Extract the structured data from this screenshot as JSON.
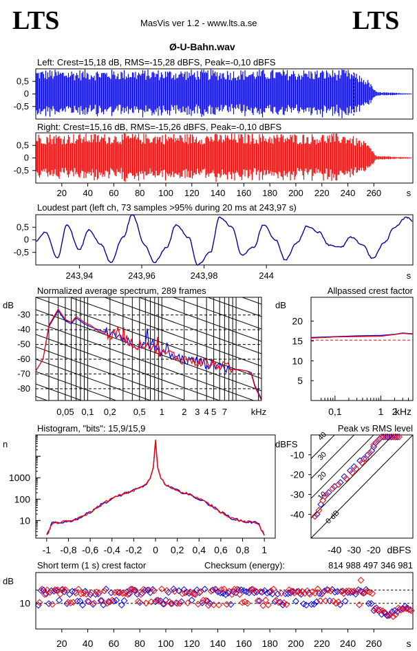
{
  "header": {
    "logo_left": "LTS",
    "logo_right": "LTS",
    "app": "MasVis ver 1.2 - www.lts.a.se",
    "file": "Ø-U-Bahn.wav"
  },
  "chart_data": [
    {
      "id": "left",
      "type": "waveform",
      "title": "Left: Crest=15,18 dB, RMS=-15,28 dBFS, Peak=-0,10 dBFS",
      "color": "#0000ff",
      "ylim": [
        -1,
        1
      ],
      "yticks": [
        "0,5",
        "0",
        "-0,5"
      ],
      "xlim": [
        0,
        290
      ],
      "envelope": [
        [
          0,
          0.98
        ],
        [
          240,
          0.98
        ],
        [
          255,
          0.6
        ],
        [
          262,
          0.08
        ],
        [
          290,
          0.02
        ]
      ]
    },
    {
      "id": "right",
      "type": "waveform",
      "title": "Right: Crest=15,16 dB, RMS=-15,26 dBFS, Peak=-0,10 dBFS",
      "color": "#ff0000",
      "ylim": [
        -1,
        1
      ],
      "yticks": [
        "0,5",
        "0",
        "-0,5"
      ],
      "xlim": [
        0,
        290
      ],
      "xticks": [
        "20",
        "40",
        "60",
        "80",
        "100",
        "120",
        "140",
        "160",
        "180",
        "200",
        "220",
        "240",
        "260"
      ],
      "xunit": "s",
      "envelope": [
        [
          0,
          0.98
        ],
        [
          240,
          0.98
        ],
        [
          255,
          0.6
        ],
        [
          262,
          0.08
        ],
        [
          290,
          0.02
        ]
      ]
    },
    {
      "id": "loudest",
      "type": "line",
      "title": "Loudest part (left  ch, 73 samples >95% during 20 ms at 243,97 s)",
      "color": "#0000a0",
      "xlim": [
        243.926,
        244.047
      ],
      "ylim": [
        -1,
        1
      ],
      "yticks": [
        "0,5",
        "0",
        "-0,5"
      ],
      "xticks": [
        "243,94",
        "243,96",
        "243,98",
        "244"
      ],
      "xunit": "s",
      "x": [
        243.926,
        243.929,
        243.933,
        243.936,
        243.94,
        243.943,
        243.947,
        243.95,
        243.954,
        243.957,
        243.961,
        243.964,
        243.968,
        243.971,
        243.975,
        243.978,
        243.982,
        243.985,
        243.989,
        243.992,
        243.996,
        243.999,
        244.003,
        244.006,
        244.01,
        244.013,
        244.017,
        244.02,
        244.024,
        244.027,
        244.031,
        244.034,
        244.038,
        244.041,
        244.045,
        244.047
      ],
      "y": [
        -0.05,
        0.3,
        -0.7,
        0.6,
        -0.4,
        0.4,
        -0.2,
        -0.9,
        0.1,
        1.0,
        -0.2,
        -0.9,
        -0.3,
        0.6,
        0.1,
        -1.0,
        -0.5,
        0.9,
        0.5,
        -0.6,
        -0.3,
        0.6,
        0.0,
        -0.8,
        -0.1,
        0.55,
        0.3,
        -0.2,
        -0.3,
        0.1,
        -0.2,
        -0.75,
        -0.1,
        0.5,
        0.9,
        0.75
      ]
    },
    {
      "id": "spectrum",
      "type": "line",
      "title": "Normalized average spectrum, 289 frames",
      "ylabel": "dB",
      "xunit": "kHz",
      "xscale": "log",
      "xlim": [
        0.02,
        22
      ],
      "ylim": [
        -88,
        -18
      ],
      "yticks": [
        "-30",
        "-40",
        "-50",
        "-60",
        "-70",
        "-80"
      ],
      "xticks": [
        "0,05",
        "0,1",
        "0,2",
        "0,5",
        "1",
        "2",
        "3",
        "4",
        "5",
        "7"
      ],
      "x": [
        0.02,
        0.025,
        0.03,
        0.04,
        0.05,
        0.06,
        0.07,
        0.09,
        0.11,
        0.14,
        0.18,
        0.22,
        0.28,
        0.35,
        0.45,
        0.6,
        0.8,
        1.0,
        1.3,
        1.7,
        2.2,
        2.8,
        3.5,
        4.5,
        5.5,
        7,
        9,
        11,
        14,
        16,
        18,
        22
      ],
      "series": [
        {
          "color": "#0000ff",
          "values": [
            -68,
            -60,
            -38,
            -27,
            -34,
            -36,
            -32,
            -36,
            -38,
            -40,
            -42,
            -45,
            -44,
            -48,
            -50,
            -48,
            -54,
            -55,
            -57,
            -59,
            -61,
            -61,
            -62,
            -64,
            -63,
            -66,
            -67,
            -67,
            -68,
            -69,
            -78,
            -87
          ]
        },
        {
          "color": "#ff0000",
          "values": [
            -68,
            -60,
            -37,
            -26,
            -33,
            -35,
            -31,
            -35,
            -37,
            -41,
            -43,
            -44,
            -45,
            -47,
            -51,
            -49,
            -53,
            -56,
            -56,
            -60,
            -60,
            -62,
            -62,
            -63,
            -64,
            -65,
            -67,
            -67,
            -68,
            -70,
            -79,
            -88
          ]
        }
      ]
    },
    {
      "id": "crest_allpass",
      "type": "line",
      "title": "Allpassed crest factor",
      "ylabel": "dB",
      "xunit": "kHz",
      "xscale": "log",
      "xlim": [
        0.03,
        5
      ],
      "ylim": [
        0,
        26
      ],
      "yticks": [
        "20",
        "15",
        "10",
        "5"
      ],
      "xticks": [
        "0,1",
        "1",
        "2"
      ],
      "x": [
        0.03,
        0.1,
        0.3,
        1,
        2,
        3,
        5
      ],
      "reference": 15.2,
      "series": [
        {
          "color": "#0000ff",
          "values": [
            15.9,
            16.1,
            16.3,
            16.4,
            16.7,
            17.0,
            16.8
          ]
        },
        {
          "color": "#ff0000",
          "values": [
            15.7,
            16.0,
            16.1,
            16.2,
            16.6,
            16.9,
            16.7
          ]
        }
      ]
    },
    {
      "id": "histogram",
      "type": "line",
      "title": "Histogram, \"bits\": 15,9/15,9",
      "ylabel": "n",
      "yscale": "log",
      "xlim": [
        -1.1,
        1.1
      ],
      "ylim": [
        1.5,
        100000
      ],
      "yticks": [
        "1000",
        "100",
        "10"
      ],
      "xticks": [
        "-1",
        "-0,8",
        "-0,6",
        "-0,4",
        "-0,2",
        "0",
        "0,2",
        "0,4",
        "0,6",
        "0,8",
        "1"
      ],
      "x": [
        -1.0,
        -0.97,
        -0.95,
        -0.9,
        -0.8,
        -0.7,
        -0.6,
        -0.5,
        -0.4,
        -0.3,
        -0.2,
        -0.1,
        -0.05,
        -0.02,
        0.0,
        0.02,
        0.05,
        0.1,
        0.2,
        0.3,
        0.4,
        0.5,
        0.6,
        0.7,
        0.8,
        0.9,
        0.95,
        0.97,
        1.0
      ],
      "series": [
        {
          "color": "#0000ff",
          "values": [
            2,
            4,
            8,
            8,
            9,
            13,
            25,
            55,
            100,
            170,
            250,
            420,
            900,
            3000,
            50000,
            3000,
            900,
            420,
            250,
            170,
            100,
            55,
            25,
            13,
            9,
            8,
            8,
            4,
            2
          ]
        },
        {
          "color": "#ff0000",
          "values": [
            2,
            4,
            7,
            8,
            9,
            13,
            25,
            55,
            105,
            175,
            255,
            430,
            920,
            3100,
            60000,
            3100,
            920,
            430,
            255,
            175,
            105,
            55,
            25,
            13,
            9,
            8,
            7,
            4,
            2
          ]
        }
      ]
    },
    {
      "id": "peak_rms",
      "type": "scatter",
      "title": "Peak vs RMS level",
      "ylabel": "dBFS",
      "xunit": "dBFS",
      "xlim": [
        -52,
        0
      ],
      "ylim": [
        -52,
        0
      ],
      "yticks": [
        "-10",
        "-20",
        "-30",
        "-40"
      ],
      "xticks": [
        "-40",
        "-30",
        "-20"
      ],
      "diagonals": [
        "0 dB",
        "10",
        "20",
        "30",
        "40"
      ],
      "series": [
        {
          "color": "#0000ff",
          "points": [
            [
              -49,
              -40
            ],
            [
              -47,
              -35
            ],
            [
              -45,
              -31
            ],
            [
              -43,
              -29
            ],
            [
              -40,
              -26
            ],
            [
              -37,
              -24
            ],
            [
              -35,
              -21
            ],
            [
              -32,
              -18
            ],
            [
              -30,
              -16
            ],
            [
              -27,
              -13
            ],
            [
              -25,
              -12
            ],
            [
              -21,
              -8
            ],
            [
              -19,
              -4
            ],
            [
              -17,
              -2
            ],
            [
              -15,
              -1
            ],
            [
              -13,
              -1
            ],
            [
              -11,
              -1
            ],
            [
              -9,
              -1
            ],
            [
              -8,
              -1
            ],
            [
              -20,
              -6
            ],
            [
              -23,
              -10
            ]
          ]
        },
        {
          "color": "#ff0000",
          "points": [
            [
              -50,
              -41
            ],
            [
              -48,
              -38
            ],
            [
              -46,
              -33
            ],
            [
              -44,
              -30
            ],
            [
              -41,
              -27
            ],
            [
              -38,
              -25
            ],
            [
              -34,
              -22
            ],
            [
              -31,
              -19
            ],
            [
              -29,
              -17
            ],
            [
              -26,
              -14
            ],
            [
              -24,
              -12
            ],
            [
              -22,
              -9
            ],
            [
              -20,
              -5
            ],
            [
              -18,
              -3
            ],
            [
              -16,
              -1
            ],
            [
              -14,
              -1
            ],
            [
              -12,
              -1
            ],
            [
              -10,
              -1
            ],
            [
              -9,
              -1
            ],
            [
              -7,
              -1
            ]
          ]
        }
      ]
    },
    {
      "id": "short_term",
      "type": "scatter",
      "title": "Short term (1 s) crest factor",
      "ylabel": "dB",
      "checksum_label": "Checksum (energy):",
      "checksum": "814 988 497 346 981",
      "xlim": [
        0,
        290
      ],
      "ylim": [
        0,
        22
      ],
      "yticks": [
        "10"
      ],
      "xticks": [
        "20",
        "40",
        "60",
        "80",
        "100",
        "120",
        "140",
        "160",
        "180",
        "200",
        "220",
        "240",
        "260"
      ],
      "xunit": "s",
      "reference": [
        15.2,
        10
      ],
      "upper_level": 14.5,
      "lower_level": 10.2,
      "end_dip": [
        [
          262,
          8
        ],
        [
          270,
          5
        ],
        [
          275,
          6
        ],
        [
          280,
          8
        ],
        [
          288,
          8
        ]
      ],
      "outlier": [
        250,
        19
      ]
    }
  ]
}
